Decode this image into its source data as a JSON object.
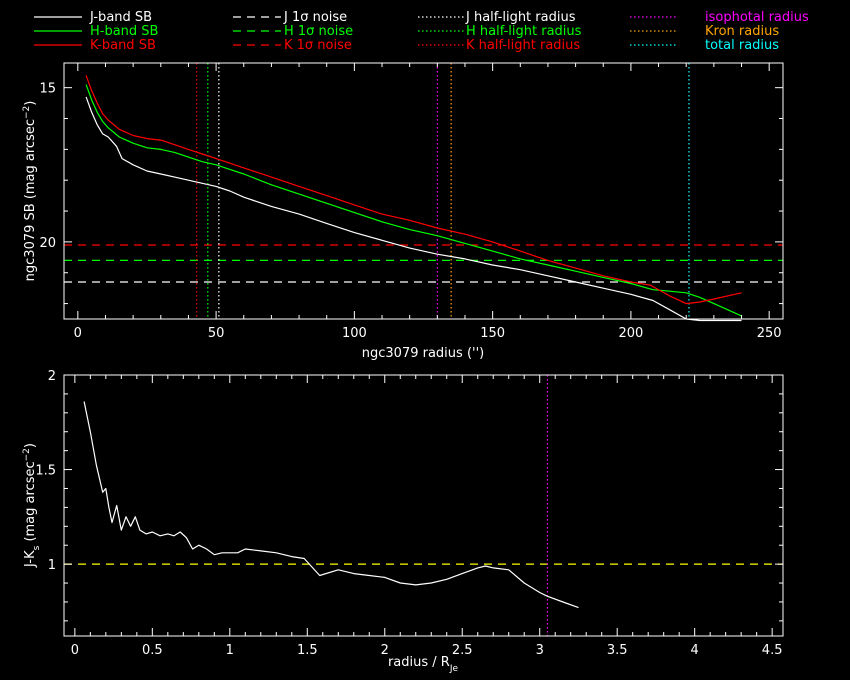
{
  "chart_data": [
    {
      "type": "line",
      "xlabel": "ngc3079 radius ('')",
      "ylabel": "ngc3079 SB (mag arcsec",
      "ylabel_sup": "−2",
      "ylabel_end": ")",
      "xlim": [
        -5,
        255
      ],
      "ylim": [
        22.5,
        14.2
      ],
      "y_inverted": true,
      "xticks": [
        0,
        50,
        100,
        150,
        200,
        250
      ],
      "yticks": [
        15,
        20
      ],
      "legend": [
        {
          "label": "J-band SB",
          "color": "#ffffff",
          "style": "solid"
        },
        {
          "label": "H-band SB",
          "color": "#00ff00",
          "style": "solid"
        },
        {
          "label": "K-band SB",
          "color": "#ff0000",
          "style": "solid"
        },
        {
          "label": "J 1σ noise",
          "color": "#ffffff",
          "style": "dashed"
        },
        {
          "label": "H 1σ noise",
          "color": "#00ff00",
          "style": "dashed"
        },
        {
          "label": "K 1σ noise",
          "color": "#ff0000",
          "style": "dashed"
        },
        {
          "label": "J half-light radius",
          "color": "#ffffff",
          "style": "dotted"
        },
        {
          "label": "H half-light radius",
          "color": "#00ff00",
          "style": "dotted"
        },
        {
          "label": "K half-light radius",
          "color": "#ff0000",
          "style": "dotted"
        },
        {
          "label": "isophotal radius",
          "color": "#ff00ff",
          "style": "dotted"
        },
        {
          "label": "Kron radius",
          "color": "#ffa500",
          "style": "dotted"
        },
        {
          "label": "total radius",
          "color": "#00ffff",
          "style": "dotted"
        }
      ],
      "series": [
        {
          "name": "J-band SB",
          "color": "#ffffff",
          "x": [
            3,
            5,
            7,
            9,
            11,
            13,
            14,
            16,
            20,
            25,
            30,
            35,
            40,
            45,
            50,
            55,
            60,
            70,
            80,
            90,
            100,
            110,
            120,
            130,
            140,
            150,
            160,
            170,
            180,
            190,
            200,
            208,
            214,
            220,
            225,
            230,
            240
          ],
          "y": [
            15.3,
            15.8,
            16.2,
            16.5,
            16.6,
            16.8,
            16.9,
            17.3,
            17.5,
            17.7,
            17.8,
            17.9,
            18.0,
            18.1,
            18.2,
            18.35,
            18.55,
            18.85,
            19.1,
            19.4,
            19.7,
            19.95,
            20.2,
            20.4,
            20.55,
            20.75,
            20.9,
            21.1,
            21.3,
            21.5,
            21.7,
            21.9,
            22.2,
            22.5,
            22.55,
            22.55,
            22.55
          ]
        },
        {
          "name": "H-band SB",
          "color": "#00ff00",
          "x": [
            3,
            5,
            7,
            9,
            11,
            13,
            15,
            20,
            25,
            30,
            35,
            40,
            45,
            50,
            55,
            60,
            70,
            80,
            90,
            100,
            110,
            120,
            130,
            140,
            150,
            160,
            170,
            180,
            190,
            200,
            208,
            214,
            220,
            225,
            230,
            240
          ],
          "y": [
            14.9,
            15.4,
            15.8,
            16.1,
            16.3,
            16.45,
            16.6,
            16.8,
            16.95,
            17.0,
            17.1,
            17.25,
            17.4,
            17.5,
            17.65,
            17.8,
            18.15,
            18.45,
            18.75,
            19.05,
            19.35,
            19.6,
            19.8,
            20.05,
            20.3,
            20.55,
            20.75,
            20.95,
            21.15,
            21.35,
            21.55,
            21.6,
            21.65,
            21.8,
            22.0,
            22.4
          ]
        },
        {
          "name": "K-band SB",
          "color": "#ff0000",
          "x": [
            3,
            5,
            7,
            9,
            11,
            13,
            15,
            20,
            25,
            30,
            35,
            40,
            45,
            50,
            55,
            60,
            70,
            80,
            90,
            100,
            110,
            120,
            130,
            140,
            150,
            160,
            170,
            180,
            190,
            200,
            207,
            214,
            220,
            225,
            230,
            240
          ],
          "y": [
            14.6,
            15.1,
            15.5,
            15.85,
            16.05,
            16.2,
            16.35,
            16.55,
            16.65,
            16.7,
            16.85,
            17.0,
            17.15,
            17.3,
            17.45,
            17.6,
            17.9,
            18.2,
            18.5,
            18.8,
            19.1,
            19.3,
            19.55,
            19.75,
            20.0,
            20.3,
            20.6,
            20.85,
            21.1,
            21.3,
            21.4,
            21.75,
            22.0,
            21.95,
            21.85,
            21.65
          ]
        }
      ],
      "hlines": [
        {
          "name": "J 1σ noise",
          "y": 21.3,
          "color": "#ffffff"
        },
        {
          "name": "H 1σ noise",
          "y": 20.6,
          "color": "#00ff00"
        },
        {
          "name": "K 1σ noise",
          "y": 20.1,
          "color": "#ff0000"
        }
      ],
      "vlines": [
        {
          "name": "K half-light radius",
          "x": 43,
          "color": "#ff0000"
        },
        {
          "name": "H half-light radius",
          "x": 47,
          "color": "#00ff00"
        },
        {
          "name": "J half-light radius",
          "x": 51,
          "color": "#ffffff"
        },
        {
          "name": "isophotal radius",
          "x": 130,
          "color": "#ff00ff"
        },
        {
          "name": "Kron radius",
          "x": 135,
          "color": "#ffa500"
        },
        {
          "name": "total radius",
          "x": 221,
          "color": "#00ffff"
        }
      ]
    },
    {
      "type": "line",
      "xlabel": "radius / R",
      "xlabel_sub": "Je",
      "ylabel": "J-K",
      "ylabel_sub": "s",
      "ylabel_rest": " (mag arcsec",
      "ylabel_sup": "−2",
      "ylabel_end": ")",
      "xlim": [
        -0.07,
        4.57
      ],
      "ylim": [
        0.62,
        2.0
      ],
      "xticks": [
        0,
        0.5,
        1,
        1.5,
        2,
        2.5,
        3,
        3.5,
        4,
        4.5
      ],
      "yticks": [
        1,
        1.5,
        2
      ],
      "series": [
        {
          "name": "J-K",
          "color": "#ffffff",
          "x": [
            0.06,
            0.1,
            0.14,
            0.18,
            0.2,
            0.22,
            0.24,
            0.27,
            0.3,
            0.33,
            0.36,
            0.39,
            0.42,
            0.46,
            0.5,
            0.55,
            0.6,
            0.64,
            0.68,
            0.72,
            0.76,
            0.8,
            0.85,
            0.9,
            0.95,
            1.0,
            1.05,
            1.1,
            1.2,
            1.3,
            1.4,
            1.48,
            1.58,
            1.7,
            1.8,
            1.9,
            2.0,
            2.1,
            2.2,
            2.3,
            2.4,
            2.5,
            2.6,
            2.65,
            2.7,
            2.8,
            2.9,
            3.0,
            3.05,
            3.15,
            3.25
          ],
          "y": [
            1.86,
            1.7,
            1.52,
            1.38,
            1.4,
            1.3,
            1.22,
            1.31,
            1.18,
            1.25,
            1.2,
            1.25,
            1.18,
            1.16,
            1.17,
            1.15,
            1.16,
            1.15,
            1.17,
            1.14,
            1.08,
            1.1,
            1.08,
            1.05,
            1.06,
            1.06,
            1.06,
            1.08,
            1.07,
            1.06,
            1.04,
            1.03,
            0.94,
            0.97,
            0.95,
            0.94,
            0.93,
            0.9,
            0.89,
            0.9,
            0.92,
            0.95,
            0.98,
            0.99,
            0.98,
            0.97,
            0.9,
            0.85,
            0.83,
            0.8,
            0.77
          ]
        }
      ],
      "hlines": [
        {
          "name": "reference",
          "y": 1.0,
          "color": "#ffff00"
        }
      ],
      "vlines": [
        {
          "name": "isophotal radius",
          "x": 3.05,
          "color": "#ff00ff"
        }
      ]
    }
  ]
}
